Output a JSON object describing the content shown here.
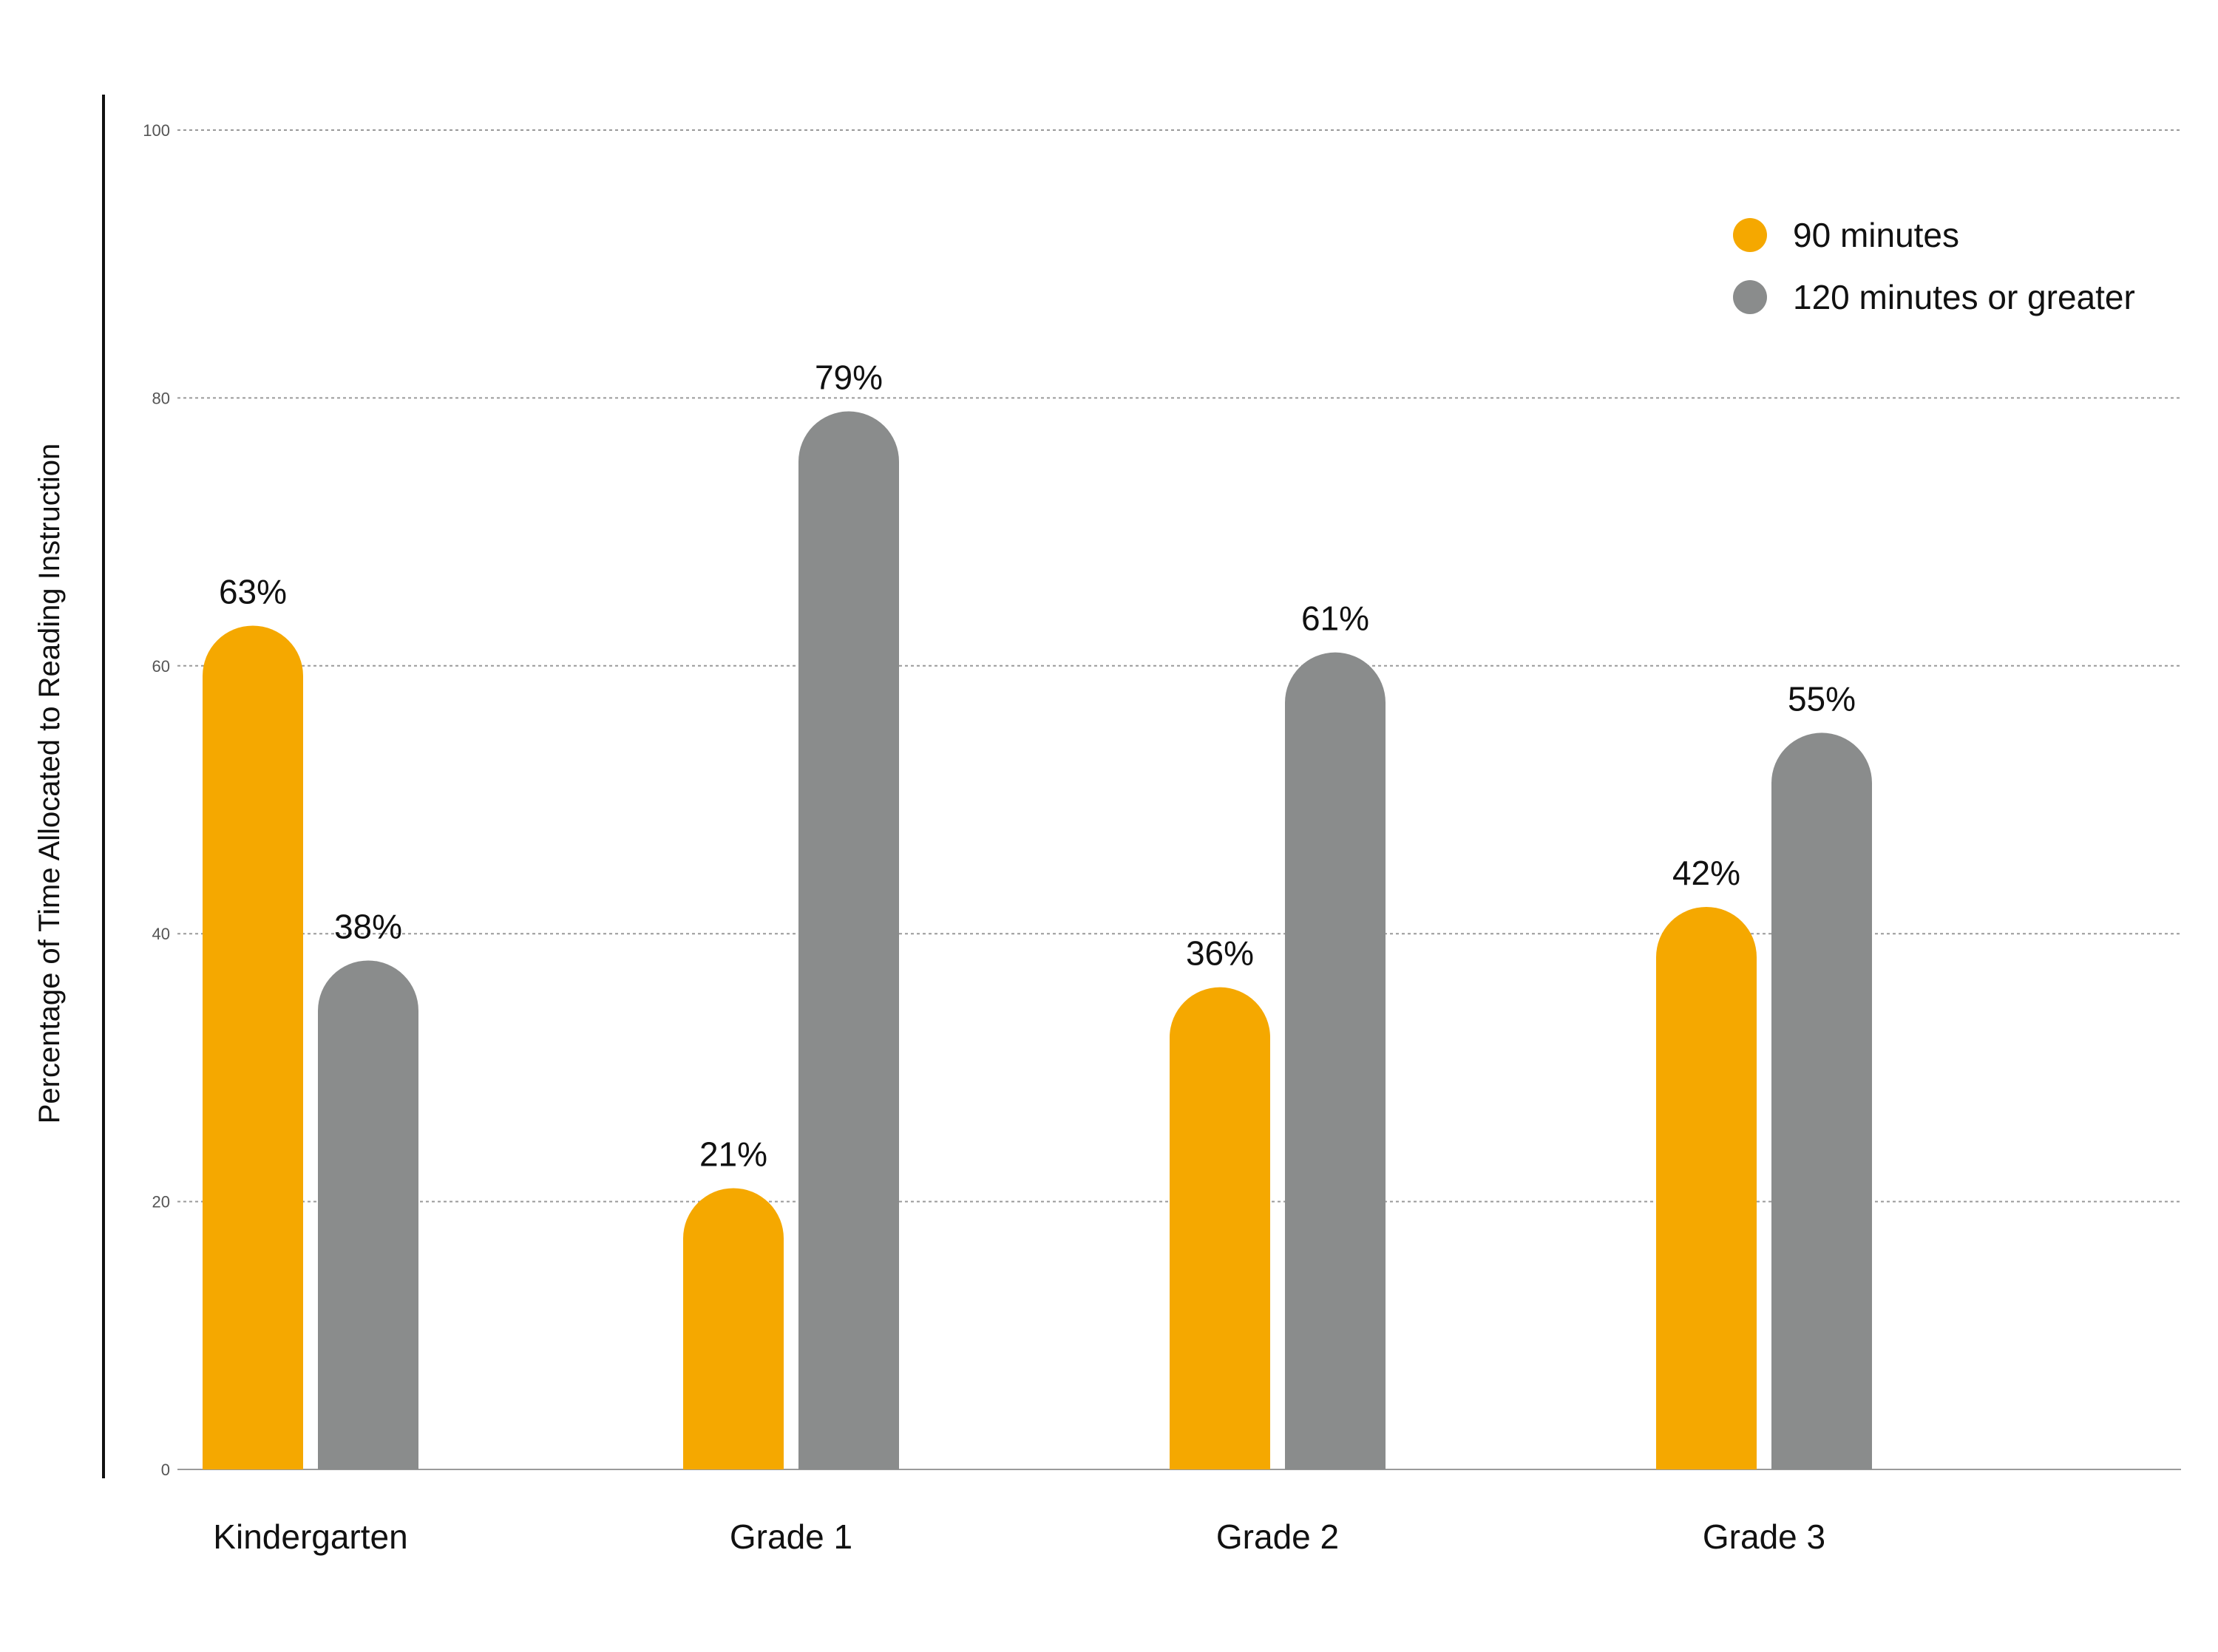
{
  "chart_data": {
    "type": "bar",
    "title": "",
    "xlabel": "",
    "ylabel": "Percentage of Time Allocated to Reading Instruction",
    "ylim": [
      0,
      100
    ],
    "yticks": [
      0,
      20,
      40,
      60,
      80,
      100
    ],
    "grid": true,
    "legend_position": "top-right",
    "categories": [
      "Kindergarten",
      "Grade 1",
      "Grade 2",
      "Grade 3"
    ],
    "series": [
      {
        "name": "90 minutes",
        "color": "#F5A800",
        "values": [
          63,
          21,
          36,
          42
        ],
        "labels": [
          "63%",
          "21%",
          "36%",
          "42%"
        ]
      },
      {
        "name": "120 minutes or greater",
        "color": "#8A8C8C",
        "values": [
          38,
          79,
          61,
          55
        ],
        "labels": [
          "38%",
          "79%",
          "61%",
          "55%"
        ]
      }
    ]
  }
}
